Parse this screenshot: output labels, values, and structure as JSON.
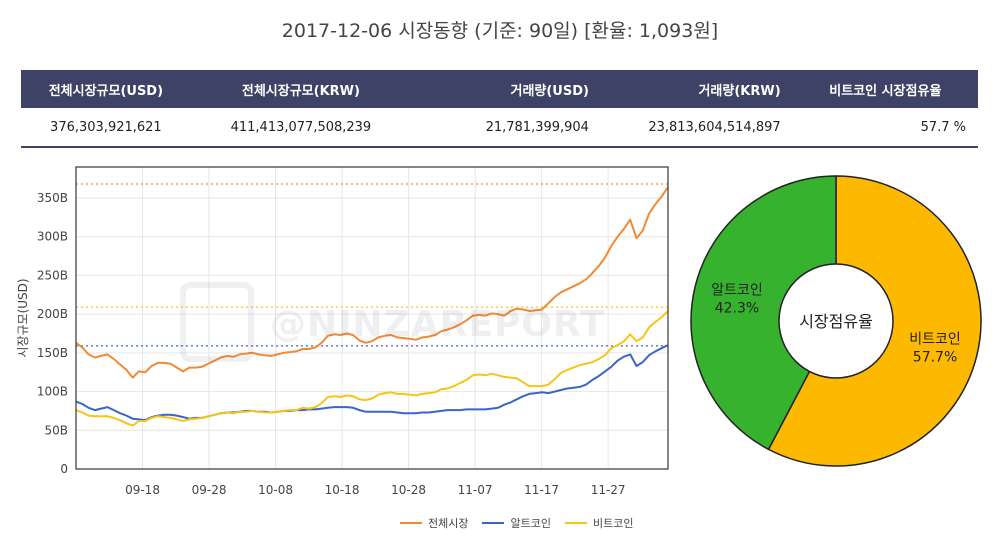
{
  "title": "2017-12-06 시장동향 (기준: 90일)   [환율: 1,093원]",
  "table": {
    "headers": [
      "전체시장규모(USD)",
      "전체시장규모(KRW)",
      "거래량(USD)",
      "거래량(KRW)",
      "비트코인 시장점유율"
    ],
    "values": [
      "376,303,921,621",
      "411,413,077,508,239",
      "21,781,399,904",
      "23,813,604,514,897",
      "57.7 %"
    ]
  },
  "watermark": "@NINZAREPORT",
  "colors": {
    "header_bg": "#3d4266",
    "total": "#f28a35",
    "alt": "#3a66c4",
    "btc": "#f5c518",
    "pie_alt": "#37b22e",
    "pie_btc": "#fdb800"
  },
  "chart_data": [
    {
      "type": "line",
      "ylabel": "시장규모(USD)",
      "xlabel": "",
      "x_ticks": [
        "09-18",
        "09-28",
        "10-08",
        "10-18",
        "10-28",
        "11-07",
        "11-17",
        "11-27"
      ],
      "y_ticks": [
        "0",
        "50B",
        "100B",
        "150B",
        "200B",
        "250B",
        "300B",
        "350B"
      ],
      "ylim": [
        0,
        390
      ],
      "y_unit": "B USD",
      "grid": true,
      "x_start": "2017-09-08",
      "x_end": "2017-12-06",
      "reference_lines": [
        {
          "y": 368,
          "color": "#f28a35",
          "style": "dotted"
        },
        {
          "y": 209,
          "color": "#f5c518",
          "style": "dotted"
        },
        {
          "y": 159,
          "color": "#3a66c4",
          "style": "dotted"
        }
      ],
      "legend_position": "bottom",
      "series": [
        {
          "name": "전체시장",
          "color": "#f28a35",
          "values": [
            163,
            157,
            148,
            144,
            146,
            148,
            142,
            135,
            128,
            118,
            126,
            125,
            133,
            137,
            137,
            136,
            131,
            126,
            131,
            131,
            132,
            136,
            140,
            144,
            146,
            145,
            148,
            149,
            150,
            148,
            147,
            146,
            148,
            150,
            151,
            152,
            155,
            155,
            157,
            163,
            172,
            174,
            173,
            175,
            173,
            166,
            163,
            165,
            170,
            172,
            173,
            170,
            169,
            168,
            167,
            170,
            171,
            173,
            178,
            180,
            183,
            187,
            192,
            198,
            199,
            198,
            201,
            200,
            198,
            204,
            207,
            206,
            204,
            205,
            206,
            214,
            222,
            228,
            232,
            236,
            240,
            245,
            253,
            262,
            273,
            288,
            300,
            310,
            322,
            298,
            308,
            330,
            342,
            352,
            364
          ]
        },
        {
          "name": "알트코인",
          "color": "#3a66c4",
          "values": [
            87,
            84,
            79,
            76,
            78,
            80,
            76,
            72,
            69,
            65,
            64,
            63,
            67,
            69,
            70,
            70,
            69,
            67,
            65,
            66,
            66,
            68,
            70,
            72,
            73,
            73,
            74,
            75,
            75,
            74,
            74,
            73,
            74,
            75,
            75,
            76,
            76,
            77,
            77,
            78,
            79,
            80,
            80,
            80,
            79,
            76,
            74,
            74,
            74,
            74,
            74,
            73,
            72,
            72,
            72,
            73,
            73,
            74,
            75,
            76,
            76,
            76,
            77,
            77,
            77,
            77,
            78,
            79,
            83,
            86,
            90,
            94,
            97,
            98,
            99,
            98,
            100,
            102,
            104,
            105,
            106,
            109,
            115,
            120,
            126,
            132,
            140,
            145,
            148,
            133,
            138,
            147,
            152,
            156,
            160
          ]
        },
        {
          "name": "비트코인",
          "color": "#f5c518",
          "values": [
            76,
            73,
            69,
            68,
            68,
            68,
            66,
            63,
            59,
            56,
            62,
            62,
            66,
            68,
            67,
            66,
            64,
            62,
            64,
            65,
            66,
            68,
            70,
            72,
            73,
            72,
            74,
            74,
            75,
            74,
            73,
            73,
            74,
            75,
            76,
            76,
            79,
            78,
            80,
            85,
            93,
            94,
            93,
            95,
            94,
            90,
            89,
            91,
            96,
            98,
            99,
            97,
            97,
            96,
            95,
            97,
            98,
            99,
            103,
            104,
            107,
            111,
            115,
            121,
            122,
            121,
            123,
            121,
            119,
            118,
            117,
            112,
            107,
            107,
            107,
            109,
            116,
            124,
            128,
            131,
            134,
            136,
            138,
            142,
            147,
            156,
            160,
            165,
            174,
            165,
            170,
            183,
            190,
            196,
            204
          ]
        }
      ]
    },
    {
      "type": "pie",
      "center_label": "시장점유율",
      "slices": [
        {
          "label": "비트코인",
          "value": 57.7,
          "text": "57.7%",
          "color": "#fdb800"
        },
        {
          "label": "알트코인",
          "value": 42.3,
          "text": "42.3%",
          "color": "#37b22e"
        }
      ]
    }
  ]
}
